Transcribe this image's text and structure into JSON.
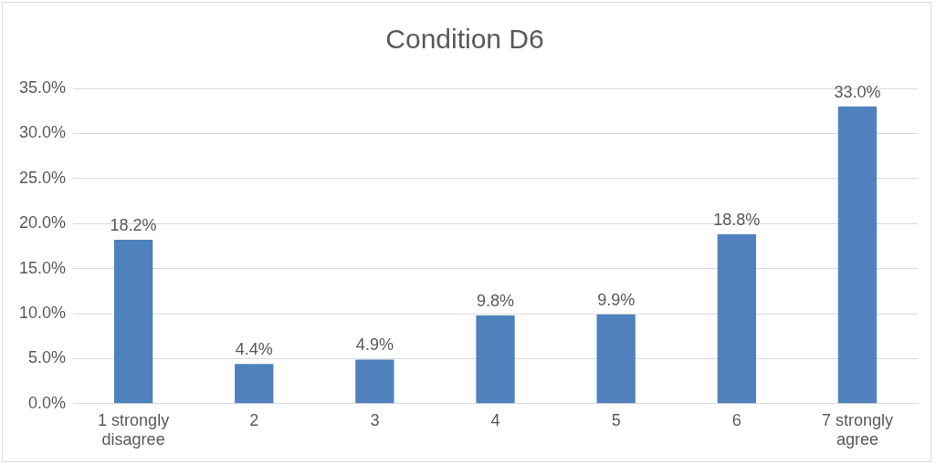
{
  "chart_data": {
    "type": "bar",
    "title": "Condition D6",
    "categories": [
      "1 strongly disagree",
      "2",
      "3",
      "4",
      "5",
      "6",
      "7 strongly agree"
    ],
    "values": [
      18.2,
      4.4,
      4.9,
      9.8,
      9.9,
      18.8,
      33.0
    ],
    "value_labels": [
      "18.2%",
      "4.4%",
      "4.9%",
      "9.8%",
      "9.9%",
      "18.8%",
      "33.0%"
    ],
    "color": "#4f81bd",
    "ylim": [
      0,
      35
    ],
    "yticks": [
      {
        "value": 0,
        "label": "0.0%"
      },
      {
        "value": 5,
        "label": "5.0%"
      },
      {
        "value": 10,
        "label": "10.0%"
      },
      {
        "value": 15,
        "label": "15.0%"
      },
      {
        "value": 20,
        "label": "20.0%"
      },
      {
        "value": 25,
        "label": "25.0%"
      },
      {
        "value": 30,
        "label": "30.0%"
      },
      {
        "value": 35,
        "label": "35.0%"
      }
    ],
    "grid": "y"
  }
}
